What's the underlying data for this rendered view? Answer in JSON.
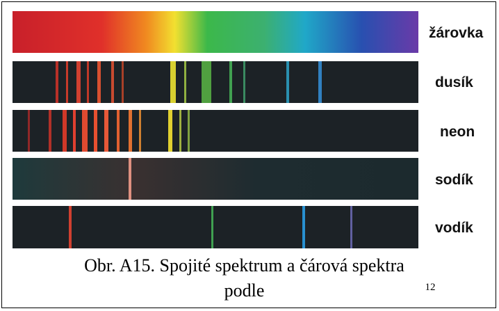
{
  "labels": [
    "žárovka",
    "dusík",
    "neon",
    "sodík",
    "vodík"
  ],
  "caption": {
    "text": "Obr. A15. Spojité spektrum a čárová spektra podle",
    "superscript": "12"
  }
}
